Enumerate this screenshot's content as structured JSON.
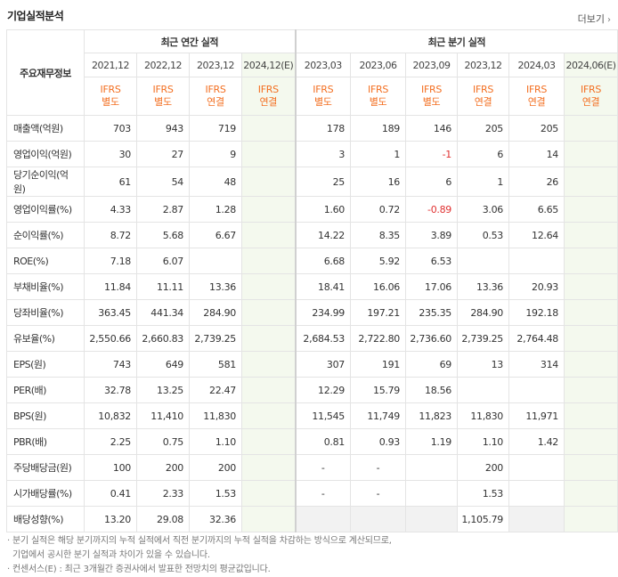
{
  "header": {
    "title": "기업실적분석",
    "more_label": "더보기"
  },
  "table": {
    "row_header_label": "주요재무정보",
    "groups": [
      "최근 연간 실적",
      "최근 분기 실적"
    ],
    "periods": [
      "2021,12",
      "2022,12",
      "2023,12",
      "2024,12(E)",
      "2023,03",
      "2023,06",
      "2023,09",
      "2023,12",
      "2024,03",
      "2024,06(E)"
    ],
    "ifrs": [
      "IFRS",
      "IFRS",
      "IFRS",
      "IFRS",
      "IFRS",
      "IFRS",
      "IFRS",
      "IFRS",
      "IFRS",
      "IFRS"
    ],
    "basis": [
      "별도",
      "별도",
      "연결",
      "연결",
      "별도",
      "별도",
      "별도",
      "연결",
      "연결",
      "연결"
    ],
    "rows": [
      {
        "label": "매출액(억원)",
        "values": [
          "703",
          "943",
          "719",
          "",
          "178",
          "189",
          "146",
          "205",
          "205",
          ""
        ]
      },
      {
        "label": "영업이익(억원)",
        "values": [
          "30",
          "27",
          "9",
          "",
          "3",
          "1",
          "-1",
          "6",
          "14",
          ""
        ]
      },
      {
        "label": "당기순이익(억원)",
        "values": [
          "61",
          "54",
          "48",
          "",
          "25",
          "16",
          "6",
          "1",
          "26",
          ""
        ]
      },
      {
        "label": "영업이익률(%)",
        "values": [
          "4.33",
          "2.87",
          "1.28",
          "",
          "1.60",
          "0.72",
          "-0.89",
          "3.06",
          "6.65",
          ""
        ]
      },
      {
        "label": "순이익률(%)",
        "values": [
          "8.72",
          "5.68",
          "6.67",
          "",
          "14.22",
          "8.35",
          "3.89",
          "0.53",
          "12.64",
          ""
        ]
      },
      {
        "label": "ROE(%)",
        "values": [
          "7.18",
          "6.07",
          "",
          "",
          "6.68",
          "5.92",
          "6.53",
          "",
          "",
          ""
        ]
      },
      {
        "label": "부채비율(%)",
        "values": [
          "11.84",
          "11.11",
          "13.36",
          "",
          "18.41",
          "16.06",
          "17.06",
          "13.36",
          "20.93",
          ""
        ]
      },
      {
        "label": "당좌비율(%)",
        "values": [
          "363.45",
          "441.34",
          "284.90",
          "",
          "234.99",
          "197.21",
          "235.35",
          "284.90",
          "192.18",
          ""
        ]
      },
      {
        "label": "유보율(%)",
        "values": [
          "2,550.66",
          "2,660.83",
          "2,739.25",
          "",
          "2,684.53",
          "2,722.80",
          "2,736.60",
          "2,739.25",
          "2,764.48",
          ""
        ]
      },
      {
        "label": "EPS(원)",
        "values": [
          "743",
          "649",
          "581",
          "",
          "307",
          "191",
          "69",
          "13",
          "314",
          ""
        ]
      },
      {
        "label": "PER(배)",
        "values": [
          "32.78",
          "13.25",
          "22.47",
          "",
          "12.29",
          "15.79",
          "18.56",
          "",
          "",
          ""
        ]
      },
      {
        "label": "BPS(원)",
        "values": [
          "10,832",
          "11,410",
          "11,830",
          "",
          "11,545",
          "11,749",
          "11,823",
          "11,830",
          "11,971",
          ""
        ]
      },
      {
        "label": "PBR(배)",
        "values": [
          "2.25",
          "0.75",
          "1.10",
          "",
          "0.81",
          "0.93",
          "1.19",
          "1.10",
          "1.42",
          ""
        ]
      },
      {
        "label": "주당배당금(원)",
        "values": [
          "100",
          "200",
          "200",
          "",
          "-",
          "-",
          "",
          "200",
          "",
          ""
        ]
      },
      {
        "label": "시가배당률(%)",
        "values": [
          "0.41",
          "2.33",
          "1.53",
          "",
          "-",
          "-",
          "",
          "1.53",
          "",
          ""
        ]
      },
      {
        "label": "배당성향(%)",
        "values": [
          "13.20",
          "29.08",
          "32.36",
          "",
          "",
          "",
          "",
          "1,105.79",
          "",
          ""
        ]
      }
    ]
  },
  "notes": [
    "분기 실적은 해당 분기까지의 누적 실적에서 직전 분기까지의 누적 실적을 차감하는 방식으로 계산되므로,",
    "기업에서 공시한 분기 실적과 차이가 있을 수 있습니다.",
    "컨센서스(E) : 최근 3개월간 증권사에서 발표한 전망치의 평균값입니다."
  ],
  "colors": {
    "accent": "#f36f21",
    "estimate_bg": "#f4f9ee",
    "negative": "#e03131"
  }
}
